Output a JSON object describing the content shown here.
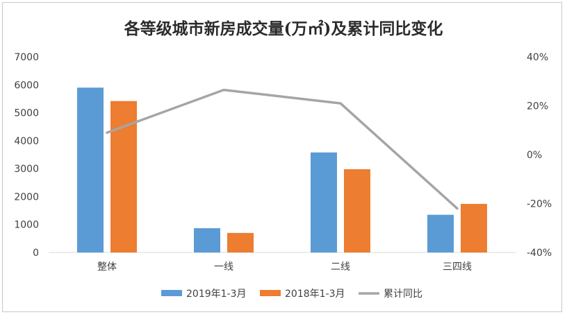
{
  "chart_data": {
    "type": "bar",
    "title": "各等级城市新房成交量(万㎡)及累计同比变化",
    "categories": [
      "整体",
      "一线",
      "二线",
      "三四线"
    ],
    "series": [
      {
        "name": "2019年1-3月",
        "kind": "bar",
        "axis": "left",
        "color": "#5b9bd5",
        "values": [
          5900,
          870,
          3580,
          1350
        ]
      },
      {
        "name": "2018年1-3月",
        "kind": "bar",
        "axis": "left",
        "color": "#ed7d31",
        "values": [
          5420,
          700,
          2980,
          1740
        ]
      },
      {
        "name": "累计同比",
        "kind": "line",
        "axis": "right",
        "color": "#a5a5a5",
        "values": [
          0.09,
          0.265,
          0.21,
          -0.22
        ]
      }
    ],
    "y_left": {
      "min": 0,
      "max": 7000,
      "ticks": [
        "0",
        "1000",
        "2000",
        "3000",
        "4000",
        "5000",
        "6000",
        "7000"
      ]
    },
    "y_right": {
      "min": -0.4,
      "max": 0.4,
      "ticks": [
        "-40%",
        "-20%",
        "0%",
        "20%",
        "40%"
      ]
    },
    "grid": false,
    "legend_position": "bottom"
  }
}
